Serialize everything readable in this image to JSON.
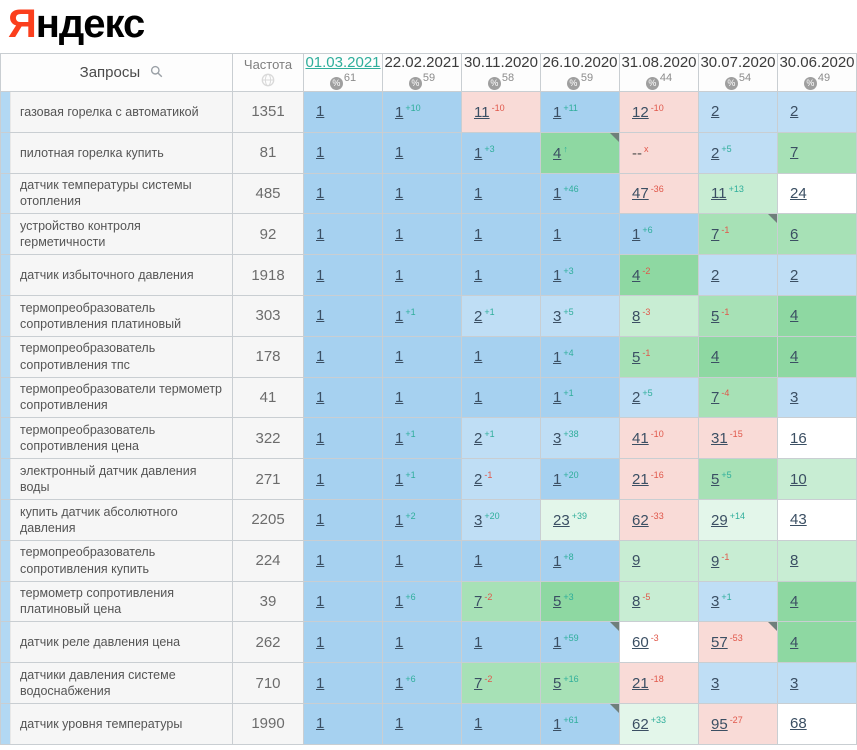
{
  "logo": {
    "part1": "Я",
    "part2": "ндекс"
  },
  "colors": {
    "accent_active_date": "#2fae9b",
    "delta_up": "#2fae9b",
    "delta_down": "#e0574a",
    "cell_top1": "#a6d1f0",
    "cell_top3": "#bfdef5",
    "cell_green": "#8ed8a2",
    "cell_green_pale": "#c8edd3",
    "cell_dropped": "#f9dbd7",
    "logo_red": "#fb3f1d"
  },
  "table": {
    "queries_header": "Запросы",
    "frequency_header": "Частота",
    "columns": [
      {
        "date": "01.03.2021",
        "coverage": "61",
        "active": true
      },
      {
        "date": "22.02.2021",
        "coverage": "59",
        "active": false
      },
      {
        "date": "30.11.2020",
        "coverage": "58",
        "active": false
      },
      {
        "date": "26.10.2020",
        "coverage": "59",
        "active": false
      },
      {
        "date": "31.08.2020",
        "coverage": "44",
        "active": false
      },
      {
        "date": "30.07.2020",
        "coverage": "54",
        "active": false
      },
      {
        "date": "30.06.2020",
        "coverage": "49",
        "active": false
      }
    ],
    "rows": [
      {
        "query": "газовая горелка с автоматикой",
        "frequency": "1351",
        "cells": [
          {
            "v": "1",
            "bg": "blue"
          },
          {
            "v": "1",
            "d": "+10",
            "dir": "up",
            "bg": "blue"
          },
          {
            "v": "11",
            "d": "-10",
            "dir": "down",
            "bg": "pink"
          },
          {
            "v": "1",
            "d": "+11",
            "dir": "up",
            "bg": "blue"
          },
          {
            "v": "12",
            "d": "-10",
            "dir": "down",
            "bg": "pink"
          },
          {
            "v": "2",
            "bg": "blue2"
          },
          {
            "v": "2",
            "bg": "blue2"
          }
        ]
      },
      {
        "query": "пилотная горелка купить",
        "frequency": "81",
        "cells": [
          {
            "v": "1",
            "bg": "blue"
          },
          {
            "v": "1",
            "bg": "blue"
          },
          {
            "v": "1",
            "d": "+3",
            "dir": "up",
            "bg": "blue"
          },
          {
            "v": "4",
            "d": "↑",
            "dir": "up",
            "bg": "g1",
            "marker": true
          },
          {
            "v": "--",
            "d": "x",
            "dir": "down",
            "bg": "pink"
          },
          {
            "v": "2",
            "d": "+5",
            "dir": "up",
            "bg": "blue2"
          },
          {
            "v": "7",
            "bg": "g2"
          }
        ]
      },
      {
        "query": "датчик температуры системы отопления",
        "frequency": "485",
        "cells": [
          {
            "v": "1",
            "bg": "blue"
          },
          {
            "v": "1",
            "bg": "blue"
          },
          {
            "v": "1",
            "bg": "blue"
          },
          {
            "v": "1",
            "d": "+46",
            "dir": "up",
            "bg": "blue"
          },
          {
            "v": "47",
            "d": "-36",
            "dir": "down",
            "bg": "pink"
          },
          {
            "v": "11",
            "d": "+13",
            "dir": "up",
            "bg": "g3"
          },
          {
            "v": "24",
            "bg": "white"
          }
        ]
      },
      {
        "query": "устройство контроля герметичности",
        "frequency": "92",
        "cells": [
          {
            "v": "1",
            "bg": "blue"
          },
          {
            "v": "1",
            "bg": "blue"
          },
          {
            "v": "1",
            "bg": "blue"
          },
          {
            "v": "1",
            "bg": "blue"
          },
          {
            "v": "1",
            "d": "+6",
            "dir": "up",
            "bg": "blue"
          },
          {
            "v": "7",
            "d": "-1",
            "dir": "down",
            "bg": "g2",
            "marker": true
          },
          {
            "v": "6",
            "bg": "g2"
          }
        ]
      },
      {
        "query": "датчик избыточного давления",
        "frequency": "1918",
        "cells": [
          {
            "v": "1",
            "bg": "blue"
          },
          {
            "v": "1",
            "bg": "blue"
          },
          {
            "v": "1",
            "bg": "blue"
          },
          {
            "v": "1",
            "d": "+3",
            "dir": "up",
            "bg": "blue"
          },
          {
            "v": "4",
            "d": "-2",
            "dir": "down",
            "bg": "g1"
          },
          {
            "v": "2",
            "bg": "blue2"
          },
          {
            "v": "2",
            "bg": "blue2"
          }
        ]
      },
      {
        "query": "термопреобразователь сопротивления платиновый",
        "frequency": "303",
        "cells": [
          {
            "v": "1",
            "bg": "blue"
          },
          {
            "v": "1",
            "d": "+1",
            "dir": "up",
            "bg": "blue"
          },
          {
            "v": "2",
            "d": "+1",
            "dir": "up",
            "bg": "blue2"
          },
          {
            "v": "3",
            "d": "+5",
            "dir": "up",
            "bg": "blue2"
          },
          {
            "v": "8",
            "d": "-3",
            "dir": "down",
            "bg": "g3"
          },
          {
            "v": "5",
            "d": "-1",
            "dir": "down",
            "bg": "g2"
          },
          {
            "v": "4",
            "bg": "g1"
          }
        ]
      },
      {
        "query": "термопреобразователь сопротивления тпс",
        "frequency": "178",
        "cells": [
          {
            "v": "1",
            "bg": "blue"
          },
          {
            "v": "1",
            "bg": "blue"
          },
          {
            "v": "1",
            "bg": "blue"
          },
          {
            "v": "1",
            "d": "+4",
            "dir": "up",
            "bg": "blue"
          },
          {
            "v": "5",
            "d": "-1",
            "dir": "down",
            "bg": "g2"
          },
          {
            "v": "4",
            "bg": "g1"
          },
          {
            "v": "4",
            "bg": "g1"
          }
        ]
      },
      {
        "query": "термопреобразователи термометр сопротивления",
        "frequency": "41",
        "cells": [
          {
            "v": "1",
            "bg": "blue"
          },
          {
            "v": "1",
            "bg": "blue"
          },
          {
            "v": "1",
            "bg": "blue"
          },
          {
            "v": "1",
            "d": "+1",
            "dir": "up",
            "bg": "blue"
          },
          {
            "v": "2",
            "d": "+5",
            "dir": "up",
            "bg": "blue2"
          },
          {
            "v": "7",
            "d": "-4",
            "dir": "down",
            "bg": "g2"
          },
          {
            "v": "3",
            "bg": "blue2"
          }
        ]
      },
      {
        "query": "термопреобразователь сопротивления цена",
        "frequency": "322",
        "cells": [
          {
            "v": "1",
            "bg": "blue"
          },
          {
            "v": "1",
            "d": "+1",
            "dir": "up",
            "bg": "blue"
          },
          {
            "v": "2",
            "d": "+1",
            "dir": "up",
            "bg": "blue2"
          },
          {
            "v": "3",
            "d": "+38",
            "dir": "up",
            "bg": "blue2"
          },
          {
            "v": "41",
            "d": "-10",
            "dir": "down",
            "bg": "pink"
          },
          {
            "v": "31",
            "d": "-15",
            "dir": "down",
            "bg": "pink"
          },
          {
            "v": "16",
            "bg": "white"
          }
        ]
      },
      {
        "query": "электронный датчик давления воды",
        "frequency": "271",
        "cells": [
          {
            "v": "1",
            "bg": "blue"
          },
          {
            "v": "1",
            "d": "+1",
            "dir": "up",
            "bg": "blue"
          },
          {
            "v": "2",
            "d": "-1",
            "dir": "down",
            "bg": "blue2"
          },
          {
            "v": "1",
            "d": "+20",
            "dir": "up",
            "bg": "blue"
          },
          {
            "v": "21",
            "d": "-16",
            "dir": "down",
            "bg": "pink"
          },
          {
            "v": "5",
            "d": "+5",
            "dir": "up",
            "bg": "g2"
          },
          {
            "v": "10",
            "bg": "g3"
          }
        ]
      },
      {
        "query": "купить датчик абсолютного давления",
        "frequency": "2205",
        "cells": [
          {
            "v": "1",
            "bg": "blue"
          },
          {
            "v": "1",
            "d": "+2",
            "dir": "up",
            "bg": "blue"
          },
          {
            "v": "3",
            "d": "+20",
            "dir": "up",
            "bg": "blue2"
          },
          {
            "v": "23",
            "d": "+39",
            "dir": "up",
            "bg": "g4"
          },
          {
            "v": "62",
            "d": "-33",
            "dir": "down",
            "bg": "pink"
          },
          {
            "v": "29",
            "d": "+14",
            "dir": "up",
            "bg": "g4"
          },
          {
            "v": "43",
            "bg": "white"
          }
        ]
      },
      {
        "query": "термопреобразователь сопротивления купить",
        "frequency": "224",
        "cells": [
          {
            "v": "1",
            "bg": "blue"
          },
          {
            "v": "1",
            "bg": "blue"
          },
          {
            "v": "1",
            "bg": "blue"
          },
          {
            "v": "1",
            "d": "+8",
            "dir": "up",
            "bg": "blue"
          },
          {
            "v": "9",
            "bg": "g3"
          },
          {
            "v": "9",
            "d": "-1",
            "dir": "down",
            "bg": "g3"
          },
          {
            "v": "8",
            "bg": "g3"
          }
        ]
      },
      {
        "query": "термометр сопротивления платиновый цена",
        "frequency": "39",
        "cells": [
          {
            "v": "1",
            "bg": "blue"
          },
          {
            "v": "1",
            "d": "+6",
            "dir": "up",
            "bg": "blue"
          },
          {
            "v": "7",
            "d": "-2",
            "dir": "down",
            "bg": "g2"
          },
          {
            "v": "5",
            "d": "+3",
            "dir": "up",
            "bg": "g1"
          },
          {
            "v": "8",
            "d": "-5",
            "dir": "down",
            "bg": "g3"
          },
          {
            "v": "3",
            "d": "+1",
            "dir": "up",
            "bg": "blue2"
          },
          {
            "v": "4",
            "bg": "g1"
          }
        ]
      },
      {
        "query": "датчик реле давления цена",
        "frequency": "262",
        "cells": [
          {
            "v": "1",
            "bg": "blue"
          },
          {
            "v": "1",
            "bg": "blue"
          },
          {
            "v": "1",
            "bg": "blue"
          },
          {
            "v": "1",
            "d": "+59",
            "dir": "up",
            "bg": "blue",
            "marker": true
          },
          {
            "v": "60",
            "d": "-3",
            "dir": "down",
            "bg": "white"
          },
          {
            "v": "57",
            "d": "-53",
            "dir": "down",
            "bg": "pink",
            "marker": true
          },
          {
            "v": "4",
            "bg": "g1"
          }
        ]
      },
      {
        "query": "датчики давления системе водоснабжения",
        "frequency": "710",
        "cells": [
          {
            "v": "1",
            "bg": "blue"
          },
          {
            "v": "1",
            "d": "+6",
            "dir": "up",
            "bg": "blue"
          },
          {
            "v": "7",
            "d": "-2",
            "dir": "down",
            "bg": "g2"
          },
          {
            "v": "5",
            "d": "+16",
            "dir": "up",
            "bg": "g2"
          },
          {
            "v": "21",
            "d": "-18",
            "dir": "down",
            "bg": "pink"
          },
          {
            "v": "3",
            "bg": "blue2"
          },
          {
            "v": "3",
            "bg": "blue2"
          }
        ]
      },
      {
        "query": "датчик уровня температуры",
        "frequency": "1990",
        "cells": [
          {
            "v": "1",
            "bg": "blue"
          },
          {
            "v": "1",
            "bg": "blue"
          },
          {
            "v": "1",
            "bg": "blue"
          },
          {
            "v": "1",
            "d": "+61",
            "dir": "up",
            "bg": "blue",
            "marker": true
          },
          {
            "v": "62",
            "d": "+33",
            "dir": "up",
            "bg": "g4"
          },
          {
            "v": "95",
            "d": "-27",
            "dir": "down",
            "bg": "pink"
          },
          {
            "v": "68",
            "bg": "white"
          }
        ]
      }
    ]
  }
}
